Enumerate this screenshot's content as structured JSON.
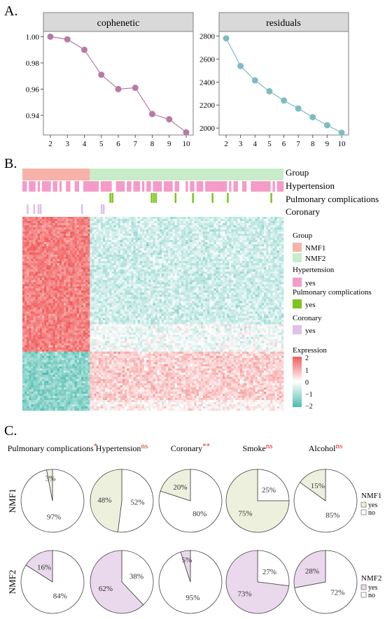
{
  "panels": {
    "a": "A.",
    "b": "B.",
    "c": "C."
  },
  "colors": {
    "cophenetic": "#b77aa6",
    "residuals": "#7fbcc2",
    "nmf1": "#f7b2a9",
    "nmf2": "#c8ecc9",
    "hypertension": "#f49bc8",
    "pulmonary": "#7ec41f",
    "coronary": "#e0c0e6",
    "heat_high": "#f15c5c",
    "heat_low": "#4fbdaf",
    "pie1_fill": "#eef0de",
    "pie2_fill": "#ead8ec",
    "sig": "#e3261c"
  },
  "chart_data": [
    {
      "type": "line",
      "title": "cophenetic",
      "x": [
        2,
        3,
        4,
        5,
        6,
        7,
        8,
        9,
        10
      ],
      "values": [
        1.0,
        0.998,
        0.99,
        0.971,
        0.96,
        0.961,
        0.941,
        0.937,
        0.927
      ],
      "ylim": [
        0.925,
        1.004
      ],
      "yticks": [
        "0.94",
        "0.96",
        "0.98",
        "1.00"
      ],
      "ytick_values": [
        0.94,
        0.96,
        0.98,
        1.0
      ],
      "xticks": [
        "2",
        "3",
        "4",
        "5",
        "6",
        "7",
        "8",
        "9",
        "10"
      ]
    },
    {
      "type": "line",
      "title": "residuals",
      "x": [
        2,
        3,
        4,
        5,
        6,
        7,
        8,
        9,
        10
      ],
      "values": [
        2780,
        2540,
        2415,
        2320,
        2240,
        2170,
        2095,
        2025,
        1960
      ],
      "ylim": [
        1940,
        2840
      ],
      "yticks": [
        "2000",
        "2200",
        "2400",
        "2600",
        "2800"
      ],
      "ytick_values": [
        2000,
        2200,
        2400,
        2600,
        2800
      ],
      "xticks": [
        "2",
        "3",
        "4",
        "5",
        "6",
        "7",
        "8",
        "9",
        "10"
      ]
    },
    {
      "type": "heatmap",
      "annotation_labels": [
        "Group",
        "Hypertension",
        "Pulmonary complications",
        "Coronary"
      ],
      "legend": {
        "group_title": "Group",
        "group_items": [
          "NMF1",
          "NMF2"
        ],
        "hypertension_title": "Hypertension",
        "hypertension_item": "yes",
        "pulmonary_title": "Pulmonary complications",
        "pulmonary_item": "yes",
        "coronary_title": "Coronary",
        "coronary_item": "yes",
        "expression_title": "Expression",
        "expression_ticks": [
          "2",
          "1",
          "0",
          "−1",
          "−2"
        ],
        "expression_values": [
          2,
          1,
          0,
          -1,
          -2
        ]
      }
    },
    {
      "type": "pie",
      "variables": [
        {
          "name": "Pulmonary complications",
          "sig": "*"
        },
        {
          "name": "Hypertension",
          "sig": "ns"
        },
        {
          "name": "Coronary",
          "sig": "**"
        },
        {
          "name": "Smoke",
          "sig": "ns"
        },
        {
          "name": "Alcohol",
          "sig": "ns"
        }
      ],
      "groups": [
        {
          "name": "NMF1",
          "legend": [
            "NMF1",
            "yes",
            "no"
          ],
          "yes": [
            "3%",
            "48%",
            "20%",
            "75%",
            "15%"
          ],
          "no": [
            "97%",
            "52%",
            "80%",
            "25%",
            "85%"
          ],
          "yes_values": [
            3,
            48,
            20,
            75,
            15
          ]
        },
        {
          "name": "NMF2",
          "legend": [
            "NMF2",
            "yes",
            "no"
          ],
          "yes": [
            "16%",
            "62%",
            "5%",
            "73%",
            "28%"
          ],
          "no": [
            "84%",
            "38%",
            "95%",
            "27%",
            "72%"
          ],
          "yes_values": [
            16,
            62,
            5,
            73,
            28
          ]
        }
      ]
    }
  ]
}
